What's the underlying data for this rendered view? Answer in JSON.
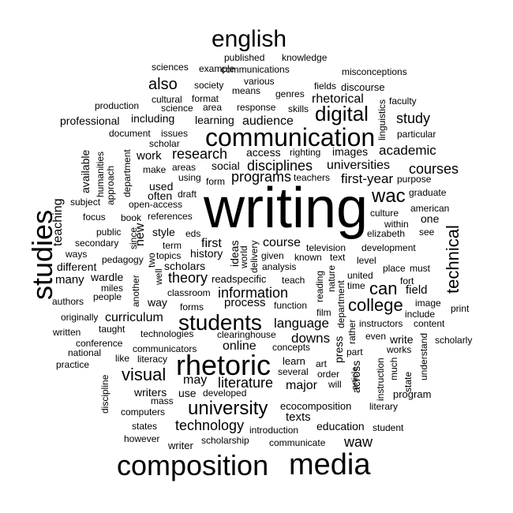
{
  "words": [
    {
      "text": "writing",
      "rotated": false
    },
    {
      "text": "communication",
      "rotated": false
    },
    {
      "text": "rhetoric",
      "rotated": false
    },
    {
      "text": "media",
      "rotated": false
    },
    {
      "text": "composition",
      "rotated": false
    },
    {
      "text": "studies",
      "rotated": true
    },
    {
      "text": "english",
      "rotated": false
    },
    {
      "text": "students",
      "rotated": false
    },
    {
      "text": "university",
      "rotated": false
    },
    {
      "text": "digital",
      "rotated": false
    },
    {
      "text": "technical",
      "rotated": true
    },
    {
      "text": "wac",
      "rotated": false
    },
    {
      "text": "college",
      "rotated": false
    },
    {
      "text": "visual",
      "rotated": false
    },
    {
      "text": "courses",
      "rotated": false
    },
    {
      "text": "can",
      "rotated": false
    },
    {
      "text": "also",
      "rotated": false
    },
    {
      "text": "information",
      "rotated": false
    },
    {
      "text": "technology",
      "rotated": false
    },
    {
      "text": "literature",
      "rotated": false
    },
    {
      "text": "research",
      "rotated": false
    },
    {
      "text": "disciplines",
      "rotated": false
    },
    {
      "text": "programs",
      "rotated": false
    },
    {
      "text": "language",
      "rotated": false
    },
    {
      "text": "theory",
      "rotated": false
    },
    {
      "text": "academic",
      "rotated": false
    },
    {
      "text": "first-year",
      "rotated": false
    },
    {
      "text": "study",
      "rotated": false
    },
    {
      "text": "rhetorical",
      "rotated": false
    },
    {
      "text": "audience",
      "rotated": false
    },
    {
      "text": "universities",
      "rotated": false
    },
    {
      "text": "course",
      "rotated": false
    },
    {
      "text": "major",
      "rotated": false
    },
    {
      "text": "downs",
      "rotated": false
    },
    {
      "text": "online",
      "rotated": false
    },
    {
      "text": "waw",
      "rotated": false
    },
    {
      "text": "curriculum",
      "rotated": false
    },
    {
      "text": "may",
      "rotated": false
    },
    {
      "text": "first",
      "rotated": false
    },
    {
      "text": "process",
      "rotated": false
    },
    {
      "text": "teaching",
      "rotated": true
    },
    {
      "text": "new",
      "rotated": true
    },
    {
      "text": "work",
      "rotated": false
    },
    {
      "text": "field",
      "rotated": false
    },
    {
      "text": "write",
      "rotated": false
    },
    {
      "text": "texts",
      "rotated": false
    },
    {
      "text": "education",
      "rotated": false
    },
    {
      "text": "professional",
      "rotated": false
    },
    {
      "text": "including",
      "rotated": false
    },
    {
      "text": "learning",
      "rotated": false
    },
    {
      "text": "access",
      "rotated": false
    },
    {
      "text": "images",
      "rotated": false
    },
    {
      "text": "social",
      "rotated": false
    },
    {
      "text": "used",
      "rotated": false
    },
    {
      "text": "often",
      "rotated": false
    },
    {
      "text": "style",
      "rotated": false
    },
    {
      "text": "many",
      "rotated": false
    },
    {
      "text": "different",
      "rotated": false
    },
    {
      "text": "wardle",
      "rotated": false
    },
    {
      "text": "way",
      "rotated": false
    },
    {
      "text": "scholars",
      "rotated": false
    },
    {
      "text": "history",
      "rotated": false
    },
    {
      "text": "one",
      "rotated": false
    },
    {
      "text": "use",
      "rotated": false
    },
    {
      "text": "writers",
      "rotated": false
    },
    {
      "text": "across",
      "rotated": true
    },
    {
      "text": "press",
      "rotated": true
    },
    {
      "text": "ideas",
      "rotated": true
    },
    {
      "text": "american",
      "rotated": false
    },
    {
      "text": "computers",
      "rotated": false
    },
    {
      "text": "states",
      "rotated": false
    },
    {
      "text": "writer",
      "rotated": false
    },
    {
      "text": "however",
      "rotated": false
    },
    {
      "text": "scholarship",
      "rotated": false
    },
    {
      "text": "introduction",
      "rotated": false
    },
    {
      "text": "communicate",
      "rotated": false
    },
    {
      "text": "student",
      "rotated": false
    },
    {
      "text": "literary",
      "rotated": false
    },
    {
      "text": "program",
      "rotated": false
    },
    {
      "text": "ecocomposition",
      "rotated": false
    },
    {
      "text": "developed",
      "rotated": false
    },
    {
      "text": "mass",
      "rotated": false
    },
    {
      "text": "literacy",
      "rotated": false
    },
    {
      "text": "like",
      "rotated": false
    },
    {
      "text": "communicators",
      "rotated": false
    },
    {
      "text": "technologies",
      "rotated": false
    },
    {
      "text": "clearinghouse",
      "rotated": false
    },
    {
      "text": "concepts",
      "rotated": false
    },
    {
      "text": "learn",
      "rotated": false
    },
    {
      "text": "several",
      "rotated": false
    },
    {
      "text": "art",
      "rotated": false
    },
    {
      "text": "order",
      "rotated": false
    },
    {
      "text": "will",
      "rotated": false
    },
    {
      "text": "film",
      "rotated": false
    },
    {
      "text": "function",
      "rotated": false
    },
    {
      "text": "reading",
      "rotated": true
    },
    {
      "text": "nature",
      "rotated": true
    },
    {
      "text": "department",
      "rotated": true
    },
    {
      "text": "instructors",
      "rotated": false
    },
    {
      "text": "content",
      "rotated": false
    },
    {
      "text": "print",
      "rotated": false
    },
    {
      "text": "image",
      "rotated": false
    },
    {
      "text": "include",
      "rotated": false
    },
    {
      "text": "scholarly",
      "rotated": false
    },
    {
      "text": "even",
      "rotated": false
    },
    {
      "text": "works",
      "rotated": false
    },
    {
      "text": "part",
      "rotated": false
    },
    {
      "text": "article",
      "rotated": true
    },
    {
      "text": "instruction",
      "rotated": true
    },
    {
      "text": "much",
      "rotated": true
    },
    {
      "text": "state",
      "rotated": true
    },
    {
      "text": "understand",
      "rotated": true
    },
    {
      "text": "rather",
      "rotated": true
    },
    {
      "text": "time",
      "rotated": false
    },
    {
      "text": "united",
      "rotated": false
    },
    {
      "text": "level",
      "rotated": false
    },
    {
      "text": "place",
      "rotated": false
    },
    {
      "text": "must",
      "rotated": false
    },
    {
      "text": "fort",
      "rotated": false
    },
    {
      "text": "development",
      "rotated": false
    },
    {
      "text": "elizabeth",
      "rotated": false
    },
    {
      "text": "within",
      "rotated": false
    },
    {
      "text": "see",
      "rotated": false
    },
    {
      "text": "culture",
      "rotated": false
    },
    {
      "text": "graduate",
      "rotated": false
    },
    {
      "text": "purpose",
      "rotated": false
    },
    {
      "text": "particular",
      "rotated": false
    },
    {
      "text": "faculty",
      "rotated": false
    },
    {
      "text": "linguistics",
      "rotated": true
    },
    {
      "text": "discourse",
      "rotated": false
    },
    {
      "text": "misconceptions",
      "rotated": false
    },
    {
      "text": "fields",
      "rotated": false
    },
    {
      "text": "genres",
      "rotated": false
    },
    {
      "text": "skills",
      "rotated": false
    },
    {
      "text": "righting",
      "rotated": false
    },
    {
      "text": "teachers",
      "rotated": false
    },
    {
      "text": "response",
      "rotated": false
    },
    {
      "text": "means",
      "rotated": false
    },
    {
      "text": "various",
      "rotated": false
    },
    {
      "text": "communications",
      "rotated": false
    },
    {
      "text": "knowledge",
      "rotated": false
    },
    {
      "text": "published",
      "rotated": false
    },
    {
      "text": "example",
      "rotated": false
    },
    {
      "text": "sciences",
      "rotated": false
    },
    {
      "text": "society",
      "rotated": false
    },
    {
      "text": "cultural",
      "rotated": false
    },
    {
      "text": "format",
      "rotated": false
    },
    {
      "text": "science",
      "rotated": false
    },
    {
      "text": "area",
      "rotated": false
    },
    {
      "text": "production",
      "rotated": false
    },
    {
      "text": "document",
      "rotated": false
    },
    {
      "text": "issues",
      "rotated": false
    },
    {
      "text": "scholar",
      "rotated": false
    },
    {
      "text": "using",
      "rotated": false
    },
    {
      "text": "make",
      "rotated": false
    },
    {
      "text": "areas",
      "rotated": false
    },
    {
      "text": "form",
      "rotated": false
    },
    {
      "text": "draft",
      "rotated": false
    },
    {
      "text": "open-access",
      "rotated": false
    },
    {
      "text": "references",
      "rotated": false
    },
    {
      "text": "book",
      "rotated": false
    },
    {
      "text": "focus",
      "rotated": false
    },
    {
      "text": "subject",
      "rotated": false
    },
    {
      "text": "public",
      "rotated": false
    },
    {
      "text": "secondary",
      "rotated": false
    },
    {
      "text": "ways",
      "rotated": false
    },
    {
      "text": "pedagogy",
      "rotated": false
    },
    {
      "text": "miles",
      "rotated": false
    },
    {
      "text": "people",
      "rotated": false
    },
    {
      "text": "authors",
      "rotated": false
    },
    {
      "text": "originally",
      "rotated": false
    },
    {
      "text": "written",
      "rotated": false
    },
    {
      "text": "taught",
      "rotated": false
    },
    {
      "text": "conference",
      "rotated": false
    },
    {
      "text": "national",
      "rotated": false
    },
    {
      "text": "practice",
      "rotated": false
    },
    {
      "text": "discipline",
      "rotated": true
    },
    {
      "text": "available",
      "rotated": true
    },
    {
      "text": "humanities",
      "rotated": true
    },
    {
      "text": "approach",
      "rotated": true
    },
    {
      "text": "department",
      "rotated": true
    },
    {
      "text": "since",
      "rotated": true
    },
    {
      "text": "two",
      "rotated": true
    },
    {
      "text": "well",
      "rotated": true
    },
    {
      "text": "another",
      "rotated": true
    },
    {
      "text": "term",
      "rotated": false
    },
    {
      "text": "eds",
      "rotated": false
    },
    {
      "text": "topics",
      "rotated": false
    },
    {
      "text": "classroom",
      "rotated": false
    },
    {
      "text": "forms",
      "rotated": false
    },
    {
      "text": "readspecific",
      "rotated": false
    },
    {
      "text": "teach",
      "rotated": false
    },
    {
      "text": "world",
      "rotated": true
    },
    {
      "text": "delivery",
      "rotated": true
    },
    {
      "text": "given",
      "rotated": false
    },
    {
      "text": "analysis",
      "rotated": false
    },
    {
      "text": "known",
      "rotated": false
    },
    {
      "text": "text",
      "rotated": false
    },
    {
      "text": "television",
      "rotated": false
    }
  ]
}
